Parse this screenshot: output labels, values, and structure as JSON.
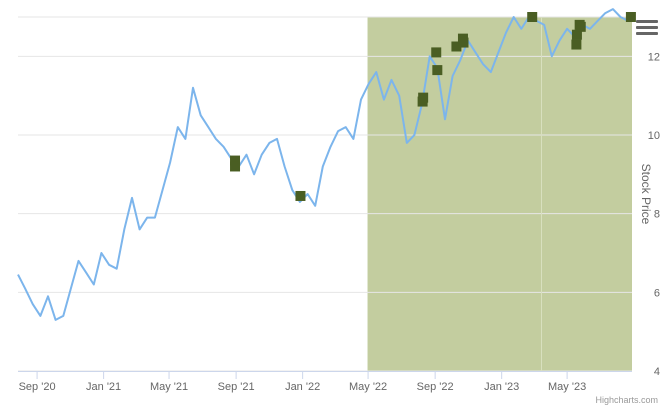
{
  "chart_data": {
    "type": "line",
    "title": "",
    "xlabel": "",
    "ylabel": "Stock Price",
    "ylim": [
      4,
      13.0
    ],
    "yticks": [
      4,
      6,
      8,
      10,
      12
    ],
    "xlim": [
      "2020-07-28",
      "2023-08-28"
    ],
    "xticks": [
      {
        "date": "2020-09-01",
        "label": "Sep '20"
      },
      {
        "date": "2021-01-01",
        "label": "Jan '21"
      },
      {
        "date": "2021-05-01",
        "label": "May '21"
      },
      {
        "date": "2021-09-01",
        "label": "Sep '21"
      },
      {
        "date": "2022-01-01",
        "label": "Jan '22"
      },
      {
        "date": "2022-05-01",
        "label": "May '22"
      },
      {
        "date": "2022-09-01",
        "label": "Sep '22"
      },
      {
        "date": "2023-01-01",
        "label": "Jan '23"
      },
      {
        "date": "2023-05-01",
        "label": "May '23"
      }
    ],
    "shaded_region": {
      "from": "2022-04-30",
      "to": "2023-08-28",
      "color": "#c3cd9f"
    },
    "vertical_line": {
      "date": "2023-03-15",
      "color": "#d9e0bf"
    },
    "series": [
      {
        "color": "#7cb5ec",
        "points": [
          [
            "2020-07-28",
            6.45
          ],
          [
            "2020-08-10",
            6.1
          ],
          [
            "2020-08-24",
            5.7
          ],
          [
            "2020-09-07",
            5.4
          ],
          [
            "2020-09-21",
            5.9
          ],
          [
            "2020-10-05",
            5.3
          ],
          [
            "2020-10-19",
            5.4
          ],
          [
            "2020-11-02",
            6.1
          ],
          [
            "2020-11-16",
            6.8
          ],
          [
            "2020-11-30",
            6.5
          ],
          [
            "2020-12-14",
            6.2
          ],
          [
            "2020-12-28",
            7.0
          ],
          [
            "2021-01-11",
            6.7
          ],
          [
            "2021-01-25",
            6.6
          ],
          [
            "2021-02-08",
            7.6
          ],
          [
            "2021-02-22",
            8.4
          ],
          [
            "2021-03-08",
            7.6
          ],
          [
            "2021-03-22",
            7.9
          ],
          [
            "2021-04-05",
            7.9
          ],
          [
            "2021-04-19",
            8.6
          ],
          [
            "2021-05-03",
            9.3
          ],
          [
            "2021-05-17",
            10.2
          ],
          [
            "2021-05-31",
            9.9
          ],
          [
            "2021-06-14",
            11.2
          ],
          [
            "2021-06-28",
            10.5
          ],
          [
            "2021-07-12",
            10.2
          ],
          [
            "2021-07-26",
            9.9
          ],
          [
            "2021-08-09",
            9.7
          ],
          [
            "2021-08-23",
            9.4
          ],
          [
            "2021-09-06",
            9.2
          ],
          [
            "2021-09-20",
            9.5
          ],
          [
            "2021-10-04",
            9.0
          ],
          [
            "2021-10-18",
            9.5
          ],
          [
            "2021-11-01",
            9.8
          ],
          [
            "2021-11-15",
            9.9
          ],
          [
            "2021-11-29",
            9.2
          ],
          [
            "2021-12-13",
            8.6
          ],
          [
            "2021-12-27",
            8.3
          ],
          [
            "2022-01-10",
            8.5
          ],
          [
            "2022-01-24",
            8.2
          ],
          [
            "2022-02-07",
            9.2
          ],
          [
            "2022-02-21",
            9.7
          ],
          [
            "2022-03-07",
            10.1
          ],
          [
            "2022-03-21",
            10.2
          ],
          [
            "2022-04-04",
            9.9
          ],
          [
            "2022-04-18",
            10.9
          ],
          [
            "2022-05-02",
            11.3
          ],
          [
            "2022-05-16",
            11.6
          ],
          [
            "2022-05-30",
            10.9
          ],
          [
            "2022-06-13",
            11.4
          ],
          [
            "2022-06-27",
            11.0
          ],
          [
            "2022-07-11",
            9.8
          ],
          [
            "2022-07-25",
            10.0
          ],
          [
            "2022-08-08",
            10.8
          ],
          [
            "2022-08-22",
            12.0
          ],
          [
            "2022-09-05",
            11.7
          ],
          [
            "2022-09-19",
            10.4
          ],
          [
            "2022-10-03",
            11.5
          ],
          [
            "2022-10-17",
            11.9
          ],
          [
            "2022-10-31",
            12.4
          ],
          [
            "2022-11-14",
            12.1
          ],
          [
            "2022-11-28",
            11.8
          ],
          [
            "2022-12-12",
            11.6
          ],
          [
            "2022-12-26",
            12.1
          ],
          [
            "2023-01-09",
            12.6
          ],
          [
            "2023-01-23",
            13.0
          ],
          [
            "2023-02-06",
            12.7
          ],
          [
            "2023-02-20",
            13.0
          ],
          [
            "2023-03-06",
            12.9
          ],
          [
            "2023-03-20",
            12.8
          ],
          [
            "2023-04-03",
            12.0
          ],
          [
            "2023-04-17",
            12.4
          ],
          [
            "2023-05-01",
            12.7
          ],
          [
            "2023-05-15",
            12.5
          ],
          [
            "2023-05-29",
            12.8
          ],
          [
            "2023-06-12",
            12.7
          ],
          [
            "2023-06-26",
            12.9
          ],
          [
            "2023-07-10",
            13.1
          ],
          [
            "2023-07-24",
            13.2
          ],
          [
            "2023-08-07",
            13.0
          ],
          [
            "2023-08-21",
            12.9
          ]
        ]
      }
    ],
    "markers": {
      "color": "#4a5e23",
      "points": [
        [
          "2021-08-30",
          9.35
        ],
        [
          "2021-08-30",
          9.2
        ],
        [
          "2021-12-28",
          8.45
        ],
        [
          "2022-08-09",
          10.85
        ],
        [
          "2022-08-10",
          10.95
        ],
        [
          "2022-09-03",
          12.1
        ],
        [
          "2022-09-05",
          11.65
        ],
        [
          "2022-10-10",
          12.25
        ],
        [
          "2022-10-22",
          12.45
        ],
        [
          "2022-10-23",
          12.35
        ],
        [
          "2023-02-26",
          13.0
        ],
        [
          "2023-05-18",
          12.3
        ],
        [
          "2023-05-19",
          12.55
        ],
        [
          "2023-05-24",
          12.8
        ],
        [
          "2023-05-26",
          12.75
        ],
        [
          "2023-08-26",
          13.0
        ]
      ]
    },
    "credits": "Highcharts.com"
  }
}
